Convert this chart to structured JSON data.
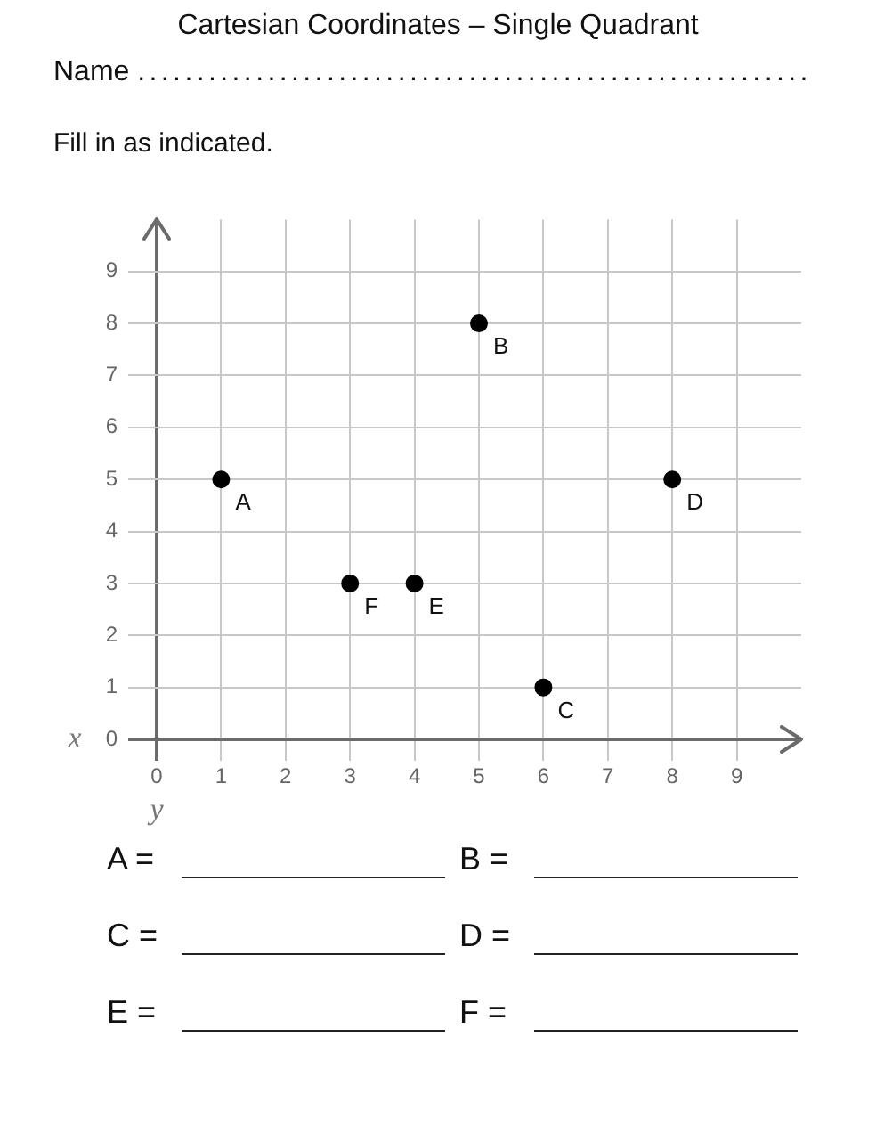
{
  "chart_data": {
    "type": "scatter",
    "title": "Cartesian Coordinates – Single Quadrant",
    "subtitle": "Name .........................................................",
    "xlabel": "y",
    "ylabel": "x",
    "annotations": [
      "Fill in as indicated.",
      "A =",
      "B =",
      "C =",
      "D =",
      "E =",
      "F =",
      {
        "text": "A",
        "x": 1,
        "y": 5
      },
      {
        "text": "B",
        "x": 5,
        "y": 8
      },
      {
        "text": "C",
        "x": 6,
        "y": 1
      },
      {
        "text": "D",
        "x": 8,
        "y": 5
      },
      {
        "text": "E",
        "x": 4,
        "y": 3
      },
      {
        "text": "F",
        "x": 3,
        "y": 3
      }
    ],
    "x": [
      1,
      5,
      6,
      8,
      4,
      3
    ],
    "values": [
      5,
      8,
      1,
      5,
      3,
      3
    ],
    "color": "#000000",
    "marker": "circle",
    "xlim": [
      0,
      10
    ],
    "ylim": [
      0,
      10
    ],
    "xticks": [
      0,
      1,
      2,
      3,
      4,
      5,
      6,
      7,
      8,
      9
    ],
    "yticks": [
      0,
      1,
      2,
      3,
      4,
      5,
      6,
      7,
      8,
      9
    ],
    "grid": true
  }
}
